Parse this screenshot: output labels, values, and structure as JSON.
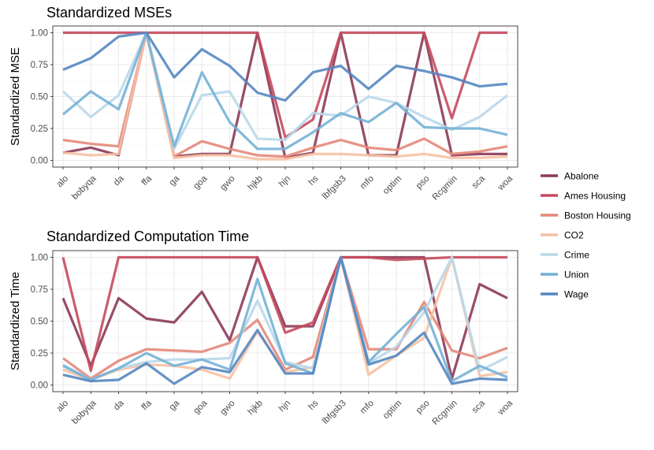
{
  "chart_data": [
    {
      "type": "line",
      "title": "Standardized MSEs",
      "xlabel": "",
      "ylabel": "Standardized MSE",
      "ylim": [
        0,
        1
      ],
      "yticks": [
        "0.00",
        "0.25",
        "0.50",
        "0.75",
        "1.00"
      ],
      "categories": [
        "alo",
        "bobyqa",
        "da",
        "ffa",
        "ga",
        "goa",
        "gwo",
        "hjkb",
        "hjn",
        "hs",
        "lbfgsb3",
        "mfo",
        "optim",
        "pso",
        "Rcgmin",
        "sca",
        "woa"
      ],
      "series": [
        {
          "name": "Abalone",
          "values": [
            0.06,
            0.1,
            0.04,
            1.0,
            0.03,
            0.05,
            0.05,
            1.0,
            0.02,
            0.06,
            1.0,
            0.04,
            0.04,
            1.0,
            0.04,
            0.05,
            0.05
          ]
        },
        {
          "name": "Ames Housing",
          "values": [
            1.0,
            1.0,
            1.0,
            1.0,
            1.0,
            1.0,
            1.0,
            1.0,
            0.18,
            0.32,
            1.0,
            1.0,
            1.0,
            1.0,
            0.33,
            1.0,
            1.0
          ]
        },
        {
          "name": "Boston Housing",
          "values": [
            0.16,
            0.13,
            0.11,
            1.0,
            0.03,
            0.15,
            0.09,
            0.04,
            0.03,
            0.1,
            0.16,
            0.1,
            0.08,
            0.17,
            0.05,
            0.07,
            0.11
          ]
        },
        {
          "name": "CO2",
          "values": [
            0.06,
            0.04,
            0.05,
            1.0,
            0.02,
            0.04,
            0.04,
            0.01,
            0.01,
            0.05,
            0.05,
            0.04,
            0.03,
            0.05,
            0.02,
            0.02,
            0.03
          ]
        },
        {
          "name": "Crime",
          "values": [
            0.54,
            0.34,
            0.51,
            1.0,
            0.09,
            0.51,
            0.54,
            0.17,
            0.16,
            0.37,
            0.35,
            0.5,
            0.45,
            0.34,
            0.24,
            0.34,
            0.51
          ]
        },
        {
          "name": "Union",
          "values": [
            0.36,
            0.54,
            0.4,
            1.0,
            0.11,
            0.69,
            0.3,
            0.09,
            0.09,
            0.22,
            0.37,
            0.3,
            0.45,
            0.26,
            0.25,
            0.25,
            0.2
          ]
        },
        {
          "name": "Wage",
          "values": [
            0.71,
            0.8,
            0.97,
            1.0,
            0.65,
            0.87,
            0.74,
            0.53,
            0.47,
            0.69,
            0.74,
            0.56,
            0.74,
            0.7,
            0.65,
            0.58,
            0.6
          ]
        }
      ]
    },
    {
      "type": "line",
      "title": "Standardized Computation Time",
      "xlabel": "",
      "ylabel": "Standardized Time",
      "ylim": [
        0,
        1
      ],
      "yticks": [
        "0.00",
        "0.25",
        "0.50",
        "0.75",
        "1.00"
      ],
      "categories": [
        "alo",
        "bobyqa",
        "da",
        "ffa",
        "ga",
        "goa",
        "gwo",
        "hjkb",
        "hjn",
        "hs",
        "lbfgsb3",
        "mfo",
        "optim",
        "pso",
        "Rcgmin",
        "sca",
        "woa"
      ],
      "series": [
        {
          "name": "Abalone",
          "values": [
            0.68,
            0.15,
            0.68,
            0.52,
            0.49,
            0.73,
            0.35,
            1.0,
            0.46,
            0.46,
            1.0,
            1.0,
            1.0,
            1.0,
            0.05,
            0.79,
            0.68
          ]
        },
        {
          "name": "Ames Housing",
          "values": [
            1.0,
            0.11,
            1.0,
            1.0,
            1.0,
            1.0,
            1.0,
            1.0,
            0.41,
            0.49,
            1.0,
            1.0,
            0.98,
            0.99,
            1.0,
            1.0,
            1.0
          ]
        },
        {
          "name": "Boston Housing",
          "values": [
            0.21,
            0.05,
            0.19,
            0.28,
            0.27,
            0.26,
            0.33,
            0.51,
            0.12,
            0.22,
            1.0,
            0.28,
            0.28,
            0.65,
            0.27,
            0.21,
            0.29
          ]
        },
        {
          "name": "CO2",
          "values": [
            0.12,
            0.04,
            0.12,
            0.16,
            0.15,
            0.12,
            0.05,
            0.42,
            0.1,
            0.14,
            1.0,
            0.08,
            0.23,
            0.37,
            1.0,
            0.07,
            0.1
          ]
        },
        {
          "name": "Crime",
          "values": [
            0.16,
            0.04,
            0.13,
            0.18,
            0.2,
            0.2,
            0.21,
            0.66,
            0.18,
            0.13,
            1.0,
            0.17,
            0.3,
            0.57,
            1.0,
            0.11,
            0.22
          ]
        },
        {
          "name": "Union",
          "values": [
            0.15,
            0.04,
            0.13,
            0.25,
            0.15,
            0.2,
            0.12,
            0.83,
            0.17,
            0.09,
            1.0,
            0.18,
            0.4,
            0.61,
            0.03,
            0.15,
            0.06
          ]
        },
        {
          "name": "Wage",
          "values": [
            0.08,
            0.03,
            0.04,
            0.17,
            0.01,
            0.14,
            0.1,
            0.43,
            0.09,
            0.09,
            1.0,
            0.16,
            0.23,
            0.41,
            0.01,
            0.05,
            0.04
          ]
        }
      ]
    }
  ],
  "legend": {
    "placement": "right",
    "items": [
      {
        "name": "Abalone",
        "color": "#8c3a58"
      },
      {
        "name": "Ames Housing",
        "color": "#c64a5e"
      },
      {
        "name": "Boston Housing",
        "color": "#e4877a"
      },
      {
        "name": "CO2",
        "color": "#f7c1a4"
      },
      {
        "name": "Crime",
        "color": "#b9d8ea"
      },
      {
        "name": "Union",
        "color": "#75b1d6"
      },
      {
        "name": "Wage",
        "color": "#5587c1"
      }
    ]
  }
}
